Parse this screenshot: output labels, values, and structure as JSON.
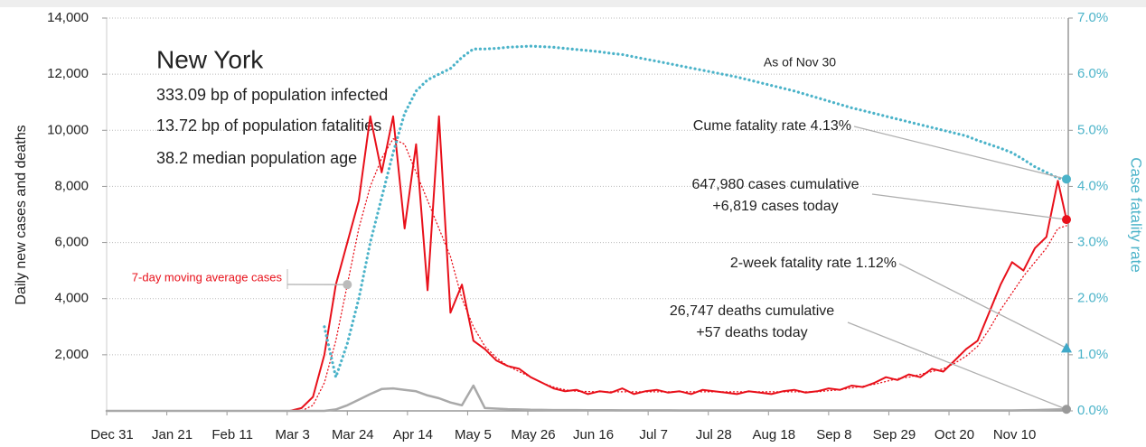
{
  "chart_data": {
    "type": "line",
    "title": "New York",
    "info": [
      "333.09 bp of population infected",
      "13.72 bp of population fatalities",
      "38.2 median population age"
    ],
    "subtitle": "As of Nov 30",
    "ylabel": "Daily new cases and deaths",
    "y2label": "Case fatality rate",
    "xlim": [
      0,
      335
    ],
    "xticks": [
      {
        "value": 0,
        "label": "Dec 31"
      },
      {
        "value": 21,
        "label": "Jan 21"
      },
      {
        "value": 42,
        "label": "Feb 11"
      },
      {
        "value": 63,
        "label": "Mar 3"
      },
      {
        "value": 84,
        "label": "Mar 24"
      },
      {
        "value": 105,
        "label": "Apr 14"
      },
      {
        "value": 126,
        "label": "May 5"
      },
      {
        "value": 147,
        "label": "May 26"
      },
      {
        "value": 168,
        "label": "Jun 16"
      },
      {
        "value": 189,
        "label": "Jul 7"
      },
      {
        "value": 210,
        "label": "Jul 28"
      },
      {
        "value": 231,
        "label": "Aug 18"
      },
      {
        "value": 252,
        "label": "Sep 8"
      },
      {
        "value": 273,
        "label": "Sep 29"
      },
      {
        "value": 294,
        "label": "Oct 20"
      },
      {
        "value": 315,
        "label": "Nov 10"
      }
    ],
    "ylim": [
      0,
      14000
    ],
    "yticks": [
      {
        "value": 2000,
        "label": "2,000"
      },
      {
        "value": 4000,
        "label": "4,000"
      },
      {
        "value": 6000,
        "label": "6,000"
      },
      {
        "value": 8000,
        "label": "8,000"
      },
      {
        "value": 10000,
        "label": "10,000"
      },
      {
        "value": 12000,
        "label": "12,000"
      },
      {
        "value": 14000,
        "label": "14,000"
      }
    ],
    "y2lim": [
      0,
      7
    ],
    "y2ticks": [
      {
        "value": 0,
        "label": "0.0%"
      },
      {
        "value": 1,
        "label": "1.0%"
      },
      {
        "value": 2,
        "label": "2.0%"
      },
      {
        "value": 3,
        "label": "3.0%"
      },
      {
        "value": 4,
        "label": "4.0%"
      },
      {
        "value": 5,
        "label": "5.0%"
      },
      {
        "value": 6,
        "label": "6.0%"
      },
      {
        "value": 7,
        "label": "7.0%"
      }
    ],
    "grid": true,
    "x": [
      0,
      4,
      8,
      12,
      16,
      20,
      24,
      28,
      32,
      36,
      40,
      44,
      48,
      52,
      56,
      60,
      64,
      68,
      72,
      76,
      80,
      84,
      88,
      92,
      96,
      100,
      104,
      108,
      112,
      116,
      120,
      124,
      128,
      132,
      136,
      140,
      144,
      148,
      152,
      156,
      160,
      164,
      168,
      172,
      176,
      180,
      184,
      188,
      192,
      196,
      200,
      204,
      208,
      212,
      216,
      220,
      224,
      228,
      232,
      236,
      240,
      244,
      248,
      252,
      256,
      260,
      264,
      268,
      272,
      276,
      280,
      284,
      288,
      292,
      296,
      300,
      304,
      308,
      312,
      316,
      320,
      324,
      328,
      332,
      335
    ],
    "series": [
      {
        "color": "#e8101a",
        "style": "solid",
        "values": [
          0,
          0,
          0,
          0,
          0,
          0,
          0,
          0,
          0,
          0,
          0,
          0,
          0,
          0,
          0,
          0,
          0,
          100,
          500,
          2000,
          4500,
          6000,
          7500,
          10500,
          8500,
          10500,
          6500,
          9500,
          4300,
          10500,
          3500,
          4500,
          2500,
          2200,
          1800,
          1600,
          1500,
          1200,
          1000,
          800,
          700,
          750,
          600,
          700,
          650,
          800,
          600,
          700,
          750,
          650,
          700,
          600,
          750,
          700,
          650,
          600,
          700,
          650,
          600,
          700,
          750,
          650,
          700,
          800,
          750,
          900,
          850,
          1000,
          1200,
          1100,
          1300,
          1200,
          1500,
          1400,
          1800,
          2200,
          2500,
          3500,
          4500,
          5300,
          5000,
          5800,
          6200,
          8200,
          6819
        ]
      },
      {
        "color": "#e8101a",
        "style": "dotted",
        "values": [
          0,
          0,
          0,
          0,
          0,
          0,
          0,
          0,
          0,
          0,
          0,
          0,
          0,
          0,
          0,
          0,
          0,
          0,
          200,
          1000,
          2500,
          4500,
          6500,
          8000,
          9000,
          9700,
          9500,
          8500,
          7500,
          6500,
          5500,
          4000,
          3000,
          2300,
          1900,
          1600,
          1400,
          1200,
          1000,
          850,
          750,
          700,
          690,
          680,
          680,
          680,
          680,
          680,
          680,
          680,
          680,
          680,
          680,
          680,
          680,
          680,
          680,
          680,
          680,
          680,
          680,
          680,
          680,
          720,
          750,
          820,
          880,
          950,
          1050,
          1150,
          1200,
          1300,
          1400,
          1500,
          1700,
          1950,
          2300,
          2900,
          3600,
          4200,
          4800,
          5300,
          5800,
          6500,
          6600
        ]
      },
      {
        "color": "#a9a9a9",
        "style": "solid",
        "values": [
          0,
          0,
          0,
          0,
          0,
          0,
          0,
          0,
          0,
          0,
          0,
          0,
          0,
          0,
          0,
          0,
          0,
          0,
          0,
          0,
          50,
          200,
          400,
          600,
          780,
          800,
          750,
          700,
          550,
          450,
          300,
          200,
          900,
          100,
          80,
          60,
          50,
          40,
          35,
          30,
          30,
          30,
          25,
          25,
          25,
          20,
          20,
          20,
          20,
          20,
          15,
          15,
          15,
          15,
          15,
          15,
          15,
          15,
          15,
          15,
          15,
          15,
          15,
          15,
          15,
          15,
          15,
          15,
          15,
          15,
          15,
          15,
          15,
          15,
          15,
          15,
          15,
          15,
          15,
          15,
          25,
          30,
          40,
          50,
          57
        ]
      },
      {
        "color": "#4bb3c9",
        "style": "dotted",
        "axis": "y2",
        "values": [
          null,
          null,
          null,
          null,
          null,
          null,
          null,
          null,
          null,
          null,
          null,
          null,
          null,
          null,
          null,
          null,
          null,
          null,
          null,
          1.5,
          0.6,
          1.2,
          2.0,
          3.0,
          3.8,
          4.6,
          5.3,
          5.7,
          5.9,
          6.0,
          6.1,
          6.3,
          6.45,
          6.45,
          6.46,
          6.48,
          6.49,
          6.5,
          6.49,
          6.48,
          6.46,
          6.44,
          6.42,
          6.4,
          6.37,
          6.35,
          6.31,
          6.27,
          6.23,
          6.19,
          6.15,
          6.11,
          6.07,
          6.03,
          5.99,
          5.95,
          5.9,
          5.85,
          5.8,
          5.75,
          5.7,
          5.64,
          5.58,
          5.52,
          5.46,
          5.4,
          5.35,
          5.3,
          5.25,
          5.2,
          5.15,
          5.1,
          5.05,
          5.0,
          4.95,
          4.9,
          4.82,
          4.75,
          4.68,
          4.6,
          4.48,
          4.35,
          4.25,
          4.15,
          4.13
        ]
      }
    ],
    "annotations": [
      {
        "lines": [
          "Cume fatality rate 4.13%"
        ]
      },
      {
        "lines": [
          "647,980 cases cumulative",
          "+6,819 cases today"
        ]
      },
      {
        "lines": [
          "2-week fatality rate 1.12%"
        ],
        "value": 1.12,
        "axis": "y2",
        "color": "#3fa9c9"
      },
      {
        "lines": [
          "26,747 deaths cumulative",
          "+57 deaths today"
        ]
      },
      {
        "lines": [
          "7-day moving average cases"
        ],
        "color": "#e8101a"
      }
    ]
  }
}
